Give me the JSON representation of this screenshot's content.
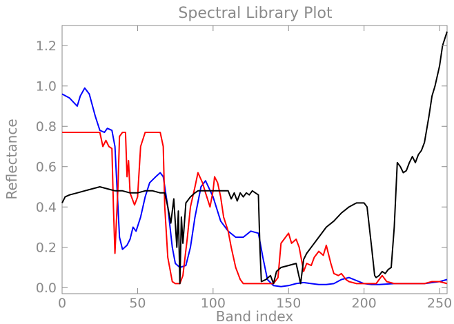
{
  "chart_data": {
    "type": "line",
    "title": "Spectral Library Plot",
    "xlabel": "Band index",
    "ylabel": "Reflectance",
    "xlim": [
      0,
      255
    ],
    "ylim": [
      -0.03,
      1.3
    ],
    "x_ticks": [
      0,
      50,
      100,
      150,
      200,
      250
    ],
    "x_tick_labels": [
      "0",
      "50",
      "100",
      "150",
      "200",
      "250"
    ],
    "y_ticks": [
      0.0,
      0.2,
      0.4,
      0.6,
      0.8,
      1.0,
      1.2
    ],
    "y_tick_labels": [
      "0.0",
      "0.2",
      "0.4",
      "0.6",
      "0.8",
      "1.0",
      "1.2"
    ],
    "grid": false,
    "legend": "none",
    "series": [
      {
        "color": "#0000ff",
        "x": [
          0,
          5,
          10,
          12,
          15,
          18,
          22,
          25,
          28,
          30,
          33,
          35,
          37,
          38,
          40,
          43,
          45,
          47,
          49,
          52,
          55,
          58,
          62,
          65,
          67,
          70,
          73,
          75,
          78,
          82,
          85,
          88,
          92,
          95,
          100,
          105,
          110,
          115,
          120,
          125,
          130,
          133,
          136,
          140,
          145,
          150,
          155,
          160,
          165,
          170,
          175,
          180,
          185,
          190,
          195,
          200,
          205,
          210,
          220,
          230,
          240,
          250,
          255
        ],
        "y": [
          0.96,
          0.94,
          0.9,
          0.95,
          0.99,
          0.96,
          0.85,
          0.78,
          0.77,
          0.79,
          0.78,
          0.7,
          0.4,
          0.25,
          0.19,
          0.21,
          0.24,
          0.3,
          0.28,
          0.35,
          0.45,
          0.52,
          0.55,
          0.57,
          0.55,
          0.4,
          0.2,
          0.12,
          0.1,
          0.11,
          0.2,
          0.35,
          0.5,
          0.53,
          0.45,
          0.33,
          0.28,
          0.25,
          0.25,
          0.28,
          0.27,
          0.15,
          0.04,
          0.01,
          0.005,
          0.01,
          0.02,
          0.025,
          0.02,
          0.015,
          0.015,
          0.02,
          0.04,
          0.05,
          0.035,
          0.02,
          0.015,
          0.015,
          0.02,
          0.02,
          0.02,
          0.03,
          0.04
        ]
      },
      {
        "color": "#ff0000",
        "x": [
          0,
          10,
          20,
          25,
          27,
          29,
          31,
          33,
          34,
          35,
          37,
          38,
          40,
          42,
          43,
          44,
          45,
          47,
          48,
          50,
          52,
          55,
          57,
          60,
          65,
          67,
          68,
          70,
          73,
          75,
          78,
          80,
          83,
          85,
          88,
          90,
          93,
          95,
          98,
          100,
          101,
          103,
          105,
          107,
          110,
          112,
          115,
          118,
          120,
          125,
          130,
          135,
          140,
          143,
          145,
          148,
          150,
          152,
          155,
          157,
          160,
          162,
          165,
          167,
          170,
          173,
          175,
          178,
          180,
          183,
          185,
          188,
          190,
          195,
          200,
          205,
          208,
          210,
          212,
          215,
          220,
          230,
          240,
          245,
          250,
          255
        ],
        "y": [
          0.77,
          0.77,
          0.77,
          0.77,
          0.7,
          0.73,
          0.7,
          0.69,
          0.4,
          0.17,
          0.5,
          0.75,
          0.77,
          0.77,
          0.55,
          0.63,
          0.47,
          0.43,
          0.41,
          0.45,
          0.7,
          0.77,
          0.77,
          0.77,
          0.77,
          0.7,
          0.4,
          0.15,
          0.03,
          0.02,
          0.02,
          0.06,
          0.25,
          0.4,
          0.5,
          0.57,
          0.52,
          0.47,
          0.4,
          0.48,
          0.55,
          0.52,
          0.45,
          0.35,
          0.28,
          0.2,
          0.1,
          0.04,
          0.02,
          0.02,
          0.02,
          0.02,
          0.02,
          0.05,
          0.22,
          0.25,
          0.27,
          0.22,
          0.24,
          0.2,
          0.08,
          0.12,
          0.11,
          0.15,
          0.18,
          0.16,
          0.21,
          0.12,
          0.07,
          0.06,
          0.07,
          0.04,
          0.03,
          0.02,
          0.02,
          0.02,
          0.02,
          0.04,
          0.06,
          0.03,
          0.02,
          0.02,
          0.02,
          0.03,
          0.03,
          0.02
        ]
      },
      {
        "color": "#000000",
        "x": [
          0,
          2,
          5,
          10,
          15,
          20,
          25,
          30,
          35,
          40,
          45,
          50,
          55,
          60,
          65,
          68,
          70,
          72,
          74,
          76,
          77,
          78,
          79,
          80,
          82,
          85,
          88,
          90,
          95,
          100,
          105,
          110,
          112,
          114,
          116,
          118,
          120,
          122,
          124,
          126,
          128,
          130,
          131,
          132,
          135,
          138,
          140,
          142,
          145,
          150,
          155,
          158,
          160,
          162,
          165,
          170,
          175,
          180,
          185,
          190,
          195,
          200,
          202,
          205,
          207,
          208,
          210,
          212,
          214,
          216,
          218,
          220,
          222,
          224,
          226,
          228,
          230,
          232,
          234,
          236,
          238,
          240,
          243,
          245,
          247,
          250,
          252,
          255
        ],
        "y": [
          0.42,
          0.45,
          0.46,
          0.47,
          0.48,
          0.49,
          0.5,
          0.49,
          0.48,
          0.48,
          0.47,
          0.47,
          0.48,
          0.48,
          0.47,
          0.47,
          0.4,
          0.32,
          0.44,
          0.2,
          0.38,
          0.02,
          0.35,
          0.22,
          0.42,
          0.45,
          0.47,
          0.48,
          0.48,
          0.48,
          0.48,
          0.48,
          0.44,
          0.47,
          0.43,
          0.47,
          0.45,
          0.47,
          0.46,
          0.48,
          0.47,
          0.46,
          0.2,
          0.03,
          0.04,
          0.06,
          0.02,
          0.08,
          0.1,
          0.11,
          0.12,
          0.02,
          0.14,
          0.17,
          0.2,
          0.25,
          0.3,
          0.33,
          0.37,
          0.4,
          0.42,
          0.42,
          0.4,
          0.2,
          0.06,
          0.05,
          0.06,
          0.08,
          0.07,
          0.09,
          0.1,
          0.3,
          0.62,
          0.6,
          0.57,
          0.58,
          0.62,
          0.65,
          0.62,
          0.66,
          0.68,
          0.72,
          0.85,
          0.95,
          1.0,
          1.1,
          1.2,
          1.27
        ]
      }
    ]
  }
}
